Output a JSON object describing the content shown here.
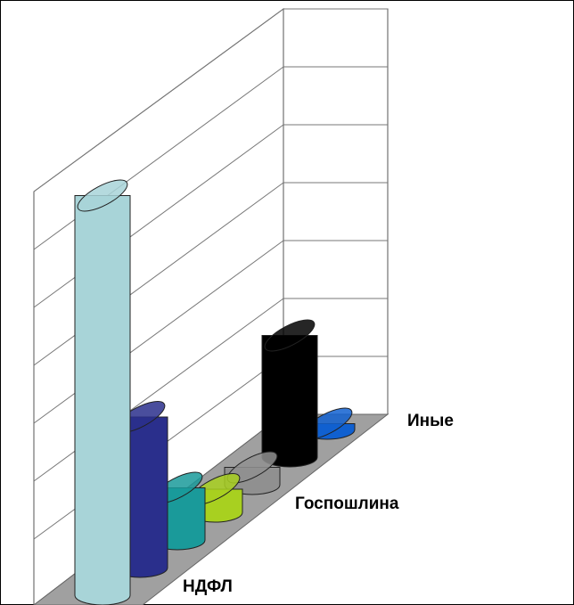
{
  "chart_data": {
    "type": "cylinder3d",
    "categories": [
      "НДФЛ",
      null,
      null,
      "Госпошлина",
      null,
      null,
      "Иные"
    ],
    "values": [
      6.9,
      2.6,
      0.9,
      0.4,
      0.3,
      2.1,
      0.1
    ],
    "colors": [
      "#a8d4d8",
      "#2a2f8c",
      "#1a9a9a",
      "#a8d020",
      "#909090",
      "#000000",
      "#1060d0"
    ],
    "ylim": [
      0,
      7
    ],
    "yticks": [
      0,
      1,
      2,
      3,
      4,
      5,
      6,
      7
    ],
    "grid": true
  }
}
